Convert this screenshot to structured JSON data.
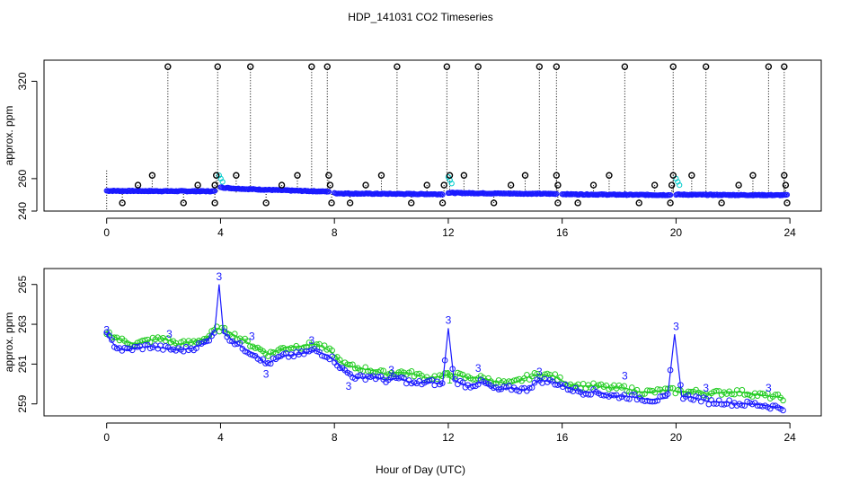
{
  "title": "HDP_141031  CO2 Timeseries",
  "xlabel": "Hour of Day (UTC)",
  "colors": {
    "axis": "#000000",
    "calib_points": "#000000",
    "sample_points": "#1a1aff",
    "sample_alt": "#00cccc",
    "series_green": "#22cc22",
    "series_blue": "#1a1aff",
    "label3": "#1a1aff",
    "label1": "#22cc22"
  },
  "chart_data": [
    {
      "type": "scatter",
      "panel": "top",
      "ylabel": "approx. ppm",
      "xlim": [
        -2.2,
        25.1
      ],
      "ylim": [
        240,
        333
      ],
      "xticks": [
        0,
        4,
        8,
        12,
        16,
        20,
        24
      ],
      "yticks": [
        240,
        260,
        320
      ],
      "ytick_labels": [
        "240",
        "260",
        "320"
      ],
      "calibration_peaks": [
        2.15,
        3.9,
        5.05,
        7.2,
        7.75,
        10.2,
        11.95,
        13.05,
        15.2,
        15.8,
        18.2,
        19.9,
        21.05,
        23.25,
        23.8
      ],
      "calibration_mid": [
        1.6,
        3.85,
        4.55,
        6.7,
        7.8,
        9.65,
        12.05,
        12.55,
        14.7,
        15.8,
        17.65,
        19.9,
        20.55,
        22.7,
        23.8
      ],
      "calibration_low": [
        0.55,
        2.7,
        3.8,
        5.6,
        7.9,
        8.55,
        10.7,
        11.8,
        13.6,
        15.85,
        16.55,
        18.7,
        19.8,
        21.6,
        23.9
      ],
      "calibration_near": [
        1.1,
        3.2,
        3.8,
        6.15,
        7.85,
        9.1,
        11.25,
        11.85,
        14.2,
        15.85,
        17.1,
        19.25,
        19.85,
        22.2,
        23.85
      ],
      "segments": [
        {
          "x0": 0.0,
          "x1": 3.8,
          "y0": 252.5,
          "y1": 252.2
        },
        {
          "x0": 4.0,
          "x1": 7.8,
          "y0": 254.8,
          "y1": 252.0
        },
        {
          "x0": 8.0,
          "x1": 11.8,
          "y0": 251.0,
          "y1": 250.4
        },
        {
          "x0": 12.0,
          "x1": 15.8,
          "y0": 251.3,
          "y1": 250.6
        },
        {
          "x0": 16.0,
          "x1": 19.8,
          "y0": 250.5,
          "y1": 249.9
        },
        {
          "x0": 20.0,
          "x1": 23.9,
          "y0": 250.2,
          "y1": 249.8
        }
      ],
      "sample_spikes": [
        {
          "x": 3.95,
          "y": 262
        },
        {
          "x": 12.0,
          "y": 261
        },
        {
          "x": 20.0,
          "y": 260
        }
      ]
    },
    {
      "type": "line",
      "panel": "bottom",
      "ylabel": "approx. ppm",
      "xlim": [
        -2.2,
        25.1
      ],
      "ylim": [
        258.4,
        265.8
      ],
      "xticks": [
        0,
        4,
        8,
        12,
        16,
        20,
        24
      ],
      "yticks": [
        259,
        261,
        263,
        265
      ],
      "ytick_labels": [
        "259",
        "261",
        "263",
        "265"
      ],
      "series": [
        {
          "name": "green",
          "x": [
            0,
            0.5,
            1.0,
            1.5,
            2.0,
            2.5,
            3.0,
            3.5,
            3.9,
            4.3,
            4.8,
            5.3,
            5.7,
            6.2,
            6.8,
            7.4,
            7.9,
            8.3,
            8.8,
            9.3,
            9.8,
            10.3,
            10.8,
            11.3,
            11.8,
            12.2,
            12.7,
            13.2,
            13.7,
            14.2,
            14.7,
            15.2,
            15.7,
            16.2,
            16.7,
            17.2,
            17.7,
            18.2,
            18.7,
            19.2,
            19.7,
            20.2,
            20.7,
            21.2,
            21.7,
            22.2,
            22.7,
            23.2,
            23.8
          ],
          "values": [
            262.6,
            262.2,
            262.0,
            262.2,
            262.3,
            262.0,
            262.1,
            262.3,
            262.8,
            262.6,
            262.2,
            261.8,
            261.5,
            261.8,
            261.9,
            262.0,
            261.6,
            261.0,
            260.8,
            260.7,
            260.5,
            260.6,
            260.5,
            260.3,
            260.4,
            260.5,
            260.3,
            260.3,
            260.1,
            260.0,
            260.3,
            260.5,
            260.4,
            260.0,
            259.9,
            259.9,
            259.8,
            259.8,
            259.6,
            259.6,
            259.7,
            259.6,
            259.6,
            259.5,
            259.6,
            259.6,
            259.5,
            259.4,
            259.3
          ]
        },
        {
          "name": "blue",
          "x": [
            0,
            0.3,
            0.6,
            1.0,
            1.5,
            2.0,
            2.5,
            3.0,
            3.5,
            3.8,
            3.95,
            4.1,
            4.4,
            4.8,
            5.3,
            5.6,
            6.2,
            6.8,
            7.3,
            7.8,
            8.0,
            8.3,
            8.8,
            9.3,
            9.8,
            10.3,
            10.8,
            11.3,
            11.8,
            12.0,
            12.2,
            12.7,
            13.2,
            13.7,
            14.2,
            14.7,
            15.2,
            15.7,
            16.2,
            16.7,
            17.2,
            17.7,
            18.2,
            18.7,
            19.2,
            19.7,
            19.95,
            20.2,
            20.7,
            21.2,
            21.7,
            22.2,
            22.7,
            23.2,
            23.8
          ],
          "values": [
            262.5,
            261.9,
            261.7,
            261.8,
            261.9,
            261.8,
            261.7,
            261.8,
            262.1,
            262.7,
            265.0,
            262.6,
            262.2,
            261.8,
            261.4,
            261.0,
            261.4,
            261.5,
            261.7,
            261.4,
            261.2,
            260.7,
            260.3,
            260.4,
            260.2,
            260.3,
            260.0,
            260.1,
            260.0,
            262.8,
            260.2,
            259.9,
            260.1,
            259.7,
            259.8,
            259.7,
            260.2,
            260.1,
            259.8,
            259.6,
            259.6,
            259.4,
            259.4,
            259.3,
            259.2,
            259.3,
            262.5,
            259.4,
            259.3,
            259.1,
            259.1,
            259.0,
            259.0,
            258.9,
            258.8
          ]
        }
      ],
      "labels_3": [
        {
          "x": 0.0,
          "y": 262.7,
          "text": "3"
        },
        {
          "x": 2.2,
          "y": 262.5,
          "text": "3"
        },
        {
          "x": 3.95,
          "y": 265.4,
          "text": "3"
        },
        {
          "x": 5.1,
          "y": 262.4,
          "text": "3"
        },
        {
          "x": 5.6,
          "y": 260.5,
          "text": "3"
        },
        {
          "x": 7.2,
          "y": 262.2,
          "text": "3"
        },
        {
          "x": 8.5,
          "y": 259.9,
          "text": "3"
        },
        {
          "x": 10.0,
          "y": 260.7,
          "text": "3"
        },
        {
          "x": 12.0,
          "y": 263.2,
          "text": "3"
        },
        {
          "x": 13.05,
          "y": 260.8,
          "text": "3"
        },
        {
          "x": 15.2,
          "y": 260.6,
          "text": "3"
        },
        {
          "x": 18.2,
          "y": 260.4,
          "text": "3"
        },
        {
          "x": 20.0,
          "y": 262.9,
          "text": "3"
        },
        {
          "x": 21.05,
          "y": 259.8,
          "text": "3"
        },
        {
          "x": 23.25,
          "y": 259.8,
          "text": "3"
        }
      ],
      "labels_1": [
        {
          "x": 12.0,
          "y": 260.5,
          "text": "1"
        },
        {
          "x": 12.05,
          "y": 260.2,
          "text": "1"
        }
      ]
    }
  ]
}
